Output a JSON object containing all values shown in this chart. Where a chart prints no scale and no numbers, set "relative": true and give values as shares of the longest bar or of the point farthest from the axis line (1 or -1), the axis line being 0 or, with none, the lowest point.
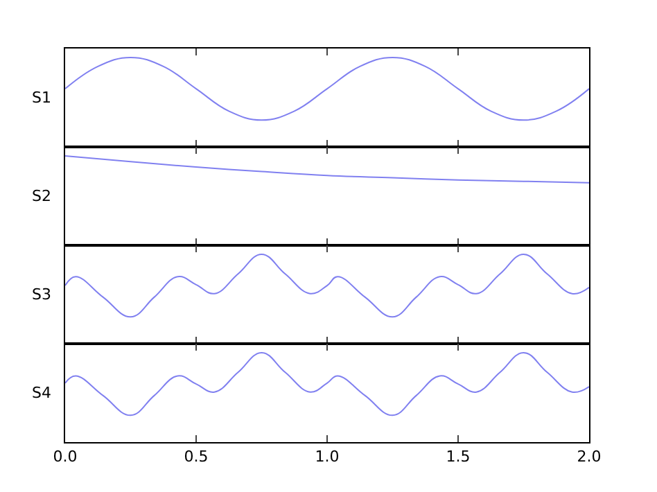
{
  "chart_data": [
    {
      "type": "line",
      "relative": true,
      "ylabel": "S1",
      "color": "#8080f0",
      "tick_labels": false,
      "xlim": [
        0,
        2
      ],
      "xticks": [
        {
          "value": 0,
          "label": null
        },
        {
          "value": 0.5,
          "label": null
        },
        {
          "value": 1,
          "label": null
        },
        {
          "value": 1.5,
          "label": null
        },
        {
          "value": 2,
          "label": null
        }
      ],
      "x": [
        0,
        0.125,
        0.25,
        0.375,
        0.5,
        0.625,
        0.75,
        0.875,
        1,
        1.125,
        1.25,
        1.375,
        1.5,
        1.625,
        1.75,
        1.875,
        2
      ],
      "values": [
        0.65,
        0.9,
        1.0,
        0.9,
        0.65,
        0.4,
        0.3,
        0.4,
        0.65,
        0.9,
        1.0,
        0.9,
        0.65,
        0.4,
        0.3,
        0.4,
        0.65
      ]
    },
    {
      "type": "line",
      "relative": true,
      "ylabel": "S2",
      "color": "#8080f0",
      "tick_labels": false,
      "xlim": [
        0,
        2
      ],
      "xticks": [
        {
          "value": 0,
          "label": null
        },
        {
          "value": 0.5,
          "label": null
        },
        {
          "value": 1,
          "label": null
        },
        {
          "value": 1.5,
          "label": null
        },
        {
          "value": 2,
          "label": null
        }
      ],
      "x": [
        0,
        0.25,
        0.5,
        0.75,
        1,
        1.25,
        1.5,
        1.75,
        2
      ],
      "values": [
        1.0,
        0.935,
        0.875,
        0.825,
        0.78,
        0.755,
        0.73,
        0.715,
        0.7
      ]
    },
    {
      "type": "line",
      "relative": true,
      "ylabel": "S3",
      "color": "#8080f0",
      "tick_labels": false,
      "xlim": [
        0,
        2
      ],
      "xticks": [
        {
          "value": 0,
          "label": null
        },
        {
          "value": 0.5,
          "label": null
        },
        {
          "value": 1,
          "label": null
        },
        {
          "value": 1.5,
          "label": null
        },
        {
          "value": 2,
          "label": null
        }
      ],
      "x": [
        0,
        0.04,
        0.145,
        0.25,
        0.34,
        0.43,
        0.5,
        0.57,
        0.66,
        0.75,
        0.84,
        0.935,
        1,
        1.04,
        1.145,
        1.25,
        1.34,
        1.43,
        1.5,
        1.57,
        1.66,
        1.75,
        1.84,
        1.935,
        2
      ],
      "values": [
        0.65,
        0.75,
        0.52,
        0.3,
        0.52,
        0.75,
        0.66,
        0.56,
        0.78,
        1.0,
        0.78,
        0.56,
        0.65,
        0.75,
        0.52,
        0.3,
        0.52,
        0.75,
        0.66,
        0.56,
        0.78,
        1.0,
        0.78,
        0.56,
        0.63
      ]
    },
    {
      "type": "line",
      "relative": true,
      "ylabel": "S4",
      "color": "#8080f0",
      "tick_labels": "x",
      "xlim": [
        0,
        2
      ],
      "xticks": [
        {
          "value": 0,
          "label": "0.0"
        },
        {
          "value": 0.5,
          "label": "0.5"
        },
        {
          "value": 1,
          "label": "1.0"
        },
        {
          "value": 1.5,
          "label": "1.5"
        },
        {
          "value": 2,
          "label": "2.0"
        }
      ],
      "x": [
        0,
        0.04,
        0.145,
        0.25,
        0.34,
        0.43,
        0.5,
        0.57,
        0.66,
        0.75,
        0.84,
        0.935,
        1,
        1.04,
        1.145,
        1.25,
        1.34,
        1.43,
        1.5,
        1.57,
        1.66,
        1.75,
        1.84,
        1.935,
        2
      ],
      "values": [
        0.66,
        0.74,
        0.52,
        0.3,
        0.52,
        0.74,
        0.65,
        0.56,
        0.78,
        1.0,
        0.78,
        0.56,
        0.66,
        0.74,
        0.52,
        0.3,
        0.52,
        0.74,
        0.65,
        0.56,
        0.78,
        1.0,
        0.78,
        0.56,
        0.62
      ]
    }
  ]
}
